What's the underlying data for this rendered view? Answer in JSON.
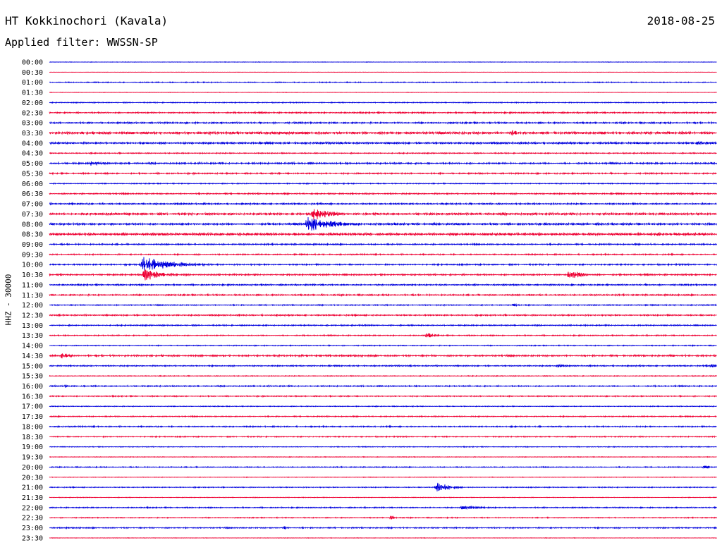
{
  "header": {
    "station": "HT Kokkinochori (Kavala)",
    "date": "2018-08-25",
    "filter": "Applied filter: WWSSN-SP"
  },
  "colors": {
    "even_row": "#0000dd",
    "odd_row": "#ee0033"
  },
  "chart_data": {
    "type": "line",
    "title": "HT Kokkinochori (Kavala)",
    "ylabel": "HHZ - 30000",
    "xlabel": "",
    "row_labels": [
      "00:00",
      "00:30",
      "01:00",
      "01:30",
      "02:00",
      "02:30",
      "03:00",
      "03:30",
      "04:00",
      "04:30",
      "05:00",
      "05:30",
      "06:00",
      "06:30",
      "07:00",
      "07:30",
      "08:00",
      "08:30",
      "09:00",
      "09:30",
      "10:00",
      "10:30",
      "11:00",
      "11:30",
      "12:00",
      "12:30",
      "13:00",
      "13:30",
      "14:00",
      "14:30",
      "15:00",
      "15:30",
      "16:00",
      "16:30",
      "17:00",
      "17:30",
      "18:00",
      "18:30",
      "19:00",
      "19:30",
      "20:00",
      "20:30",
      "21:00",
      "21:30",
      "22:00",
      "22:30",
      "23:00",
      "23:30"
    ],
    "row_minutes": 30,
    "noise_levels": [
      0.3,
      0.2,
      0.6,
      0.25,
      0.6,
      0.9,
      1.0,
      1.6,
      1.2,
      0.7,
      1.1,
      0.9,
      0.6,
      0.9,
      1.0,
      1.4,
      1.3,
      1.6,
      0.9,
      0.8,
      0.9,
      1.0,
      0.9,
      0.9,
      0.7,
      0.9,
      0.8,
      0.7,
      0.6,
      1.1,
      0.8,
      0.5,
      0.8,
      0.7,
      0.5,
      0.7,
      0.8,
      0.7,
      0.5,
      0.4,
      0.6,
      0.4,
      0.6,
      0.4,
      0.7,
      0.6,
      0.8,
      0.3
    ],
    "events": [
      {
        "row": 16,
        "minute": 11.6,
        "amplitude": 11,
        "duration_min": 2.5
      },
      {
        "row": 15,
        "minute": 11.9,
        "amplitude": 8,
        "duration_min": 1.5
      },
      {
        "row": 20,
        "minute": 4.2,
        "amplitude": 12,
        "duration_min": 3.0
      },
      {
        "row": 21,
        "minute": 4.3,
        "amplitude": 10,
        "duration_min": 1.5
      },
      {
        "row": 21,
        "minute": 23.4,
        "amplitude": 7,
        "duration_min": 1.3
      },
      {
        "row": 42,
        "minute": 17.4,
        "amplitude": 10,
        "duration_min": 1.2
      },
      {
        "row": 44,
        "minute": 18.6,
        "amplitude": 3,
        "duration_min": 1.5
      },
      {
        "row": 8,
        "minute": 29.2,
        "amplitude": 2.5,
        "duration_min": 0.8
      },
      {
        "row": 7,
        "minute": 20.8,
        "amplitude": 3,
        "duration_min": 0.5
      },
      {
        "row": 27,
        "minute": 17.0,
        "amplitude": 3,
        "duration_min": 0.7
      },
      {
        "row": 29,
        "minute": 0.6,
        "amplitude": 3,
        "duration_min": 0.6
      },
      {
        "row": 10,
        "minute": 1.9,
        "amplitude": 2.5,
        "duration_min": 0.8
      },
      {
        "row": 40,
        "minute": 29.5,
        "amplitude": 2,
        "duration_min": 0.6
      },
      {
        "row": 30,
        "minute": 29.8,
        "amplitude": 2.5,
        "duration_min": 0.3
      },
      {
        "row": 24,
        "minute": 20.9,
        "amplitude": 2.5,
        "duration_min": 0.4
      },
      {
        "row": 45,
        "minute": 15.4,
        "amplitude": 2,
        "duration_min": 0.5
      },
      {
        "row": 46,
        "minute": 10.6,
        "amplitude": 2,
        "duration_min": 0.3
      },
      {
        "row": 30,
        "minute": 22.9,
        "amplitude": 2,
        "duration_min": 0.4
      },
      {
        "row": 32,
        "minute": 0.7,
        "amplitude": 2,
        "duration_min": 0.4
      }
    ]
  }
}
